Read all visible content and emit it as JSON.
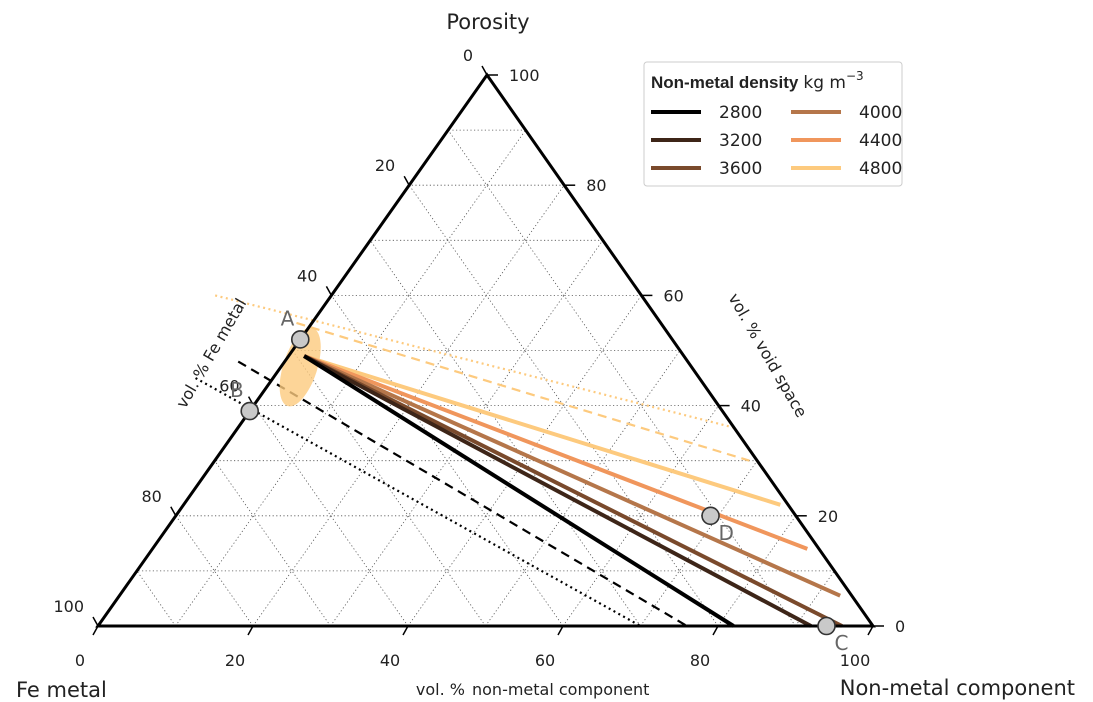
{
  "chart_data": {
    "type": "ternary",
    "corners": {
      "top": "Porosity",
      "left": "Fe metal",
      "right": "Non-metal component"
    },
    "axis_labels": {
      "left": "vol. % Fe metal",
      "right": "vol. % void space",
      "bottom_prefix": "vol. %",
      "bottom": "non-metal component"
    },
    "ticks": {
      "bottom": [
        "0",
        "20",
        "40",
        "60",
        "80",
        "100"
      ],
      "right": [
        "0",
        "20",
        "40",
        "60",
        "80",
        "100"
      ],
      "left": [
        "0",
        "20",
        "40",
        "60",
        "80",
        "100"
      ]
    },
    "grid": true,
    "grid_step": 10,
    "legend": {
      "title": "Non-metal density",
      "unit": "kg m",
      "unit_exp": "−3",
      "placement": "top-right",
      "entries": [
        {
          "label": "2800",
          "color": "#000000"
        },
        {
          "label": "3200",
          "color": "#3d2518"
        },
        {
          "label": "3600",
          "color": "#7a4a2c"
        },
        {
          "label": "4000",
          "color": "#b5764a"
        },
        {
          "label": "4400",
          "color": "#f0965c"
        },
        {
          "label": "4800",
          "color": "#fdca7e"
        }
      ]
    },
    "density_lines": [
      {
        "density": 2800,
        "color": "#000000",
        "start": {
          "fe": 49,
          "porosity": 49
        },
        "end": {
          "fe": 18,
          "porosity": 0
        }
      },
      {
        "density": 3200,
        "color": "#3d2518",
        "start": {
          "fe": 49,
          "porosity": 49
        },
        "end": {
          "fe": 8,
          "porosity": 0
        }
      },
      {
        "density": 3600,
        "color": "#7a4a2c",
        "start": {
          "fe": 49,
          "porosity": 49
        },
        "end": {
          "fe": 4,
          "porosity": 0
        }
      },
      {
        "density": 4000,
        "color": "#b5764a",
        "start": {
          "fe": 49,
          "porosity": 49
        },
        "end": {
          "fe": 1.5,
          "porosity": 5.5
        }
      },
      {
        "density": 4400,
        "color": "#f0965c",
        "start": {
          "fe": 49,
          "porosity": 49
        },
        "end": {
          "fe": 1.5,
          "porosity": 14
        }
      },
      {
        "density": 4800,
        "color": "#fdca7e",
        "start": {
          "fe": 49,
          "porosity": 49
        },
        "end": {
          "fe": 1,
          "porosity": 22
        }
      }
    ],
    "boundary_lines": [
      {
        "name": "upper-dotted",
        "style": "dotted",
        "color": "#fdca7e",
        "start": {
          "fe": 55,
          "porosity": 60
        },
        "end": {
          "fe": 0,
          "porosity": 36
        }
      },
      {
        "name": "upper-dashed",
        "style": "dashed",
        "color": "#fdca7e",
        "start": {
          "fe": 47,
          "porosity": 55
        },
        "end": {
          "fe": 1,
          "porosity": 30
        }
      },
      {
        "name": "lower-dashed",
        "style": "dashed",
        "color": "#000000",
        "start": {
          "fe": 58,
          "porosity": 48
        },
        "end": {
          "fe": 24,
          "porosity": 0
        }
      },
      {
        "name": "lower-dotted",
        "style": "dotted",
        "color": "#000000",
        "start": {
          "fe": 65,
          "porosity": 45
        },
        "end": {
          "fe": 30,
          "porosity": 0
        }
      }
    ],
    "ellipse": {
      "center": {
        "fe": 50.5,
        "porosity": 47
      },
      "color": "#fdca7e"
    },
    "points": [
      {
        "label": "A",
        "fe": 48,
        "porosity": 52
      },
      {
        "label": "B",
        "fe": 61,
        "porosity": 39
      },
      {
        "label": "C",
        "fe": 6,
        "porosity": 0
      },
      {
        "label": "D",
        "fe": 11,
        "porosity": 20
      }
    ]
  }
}
